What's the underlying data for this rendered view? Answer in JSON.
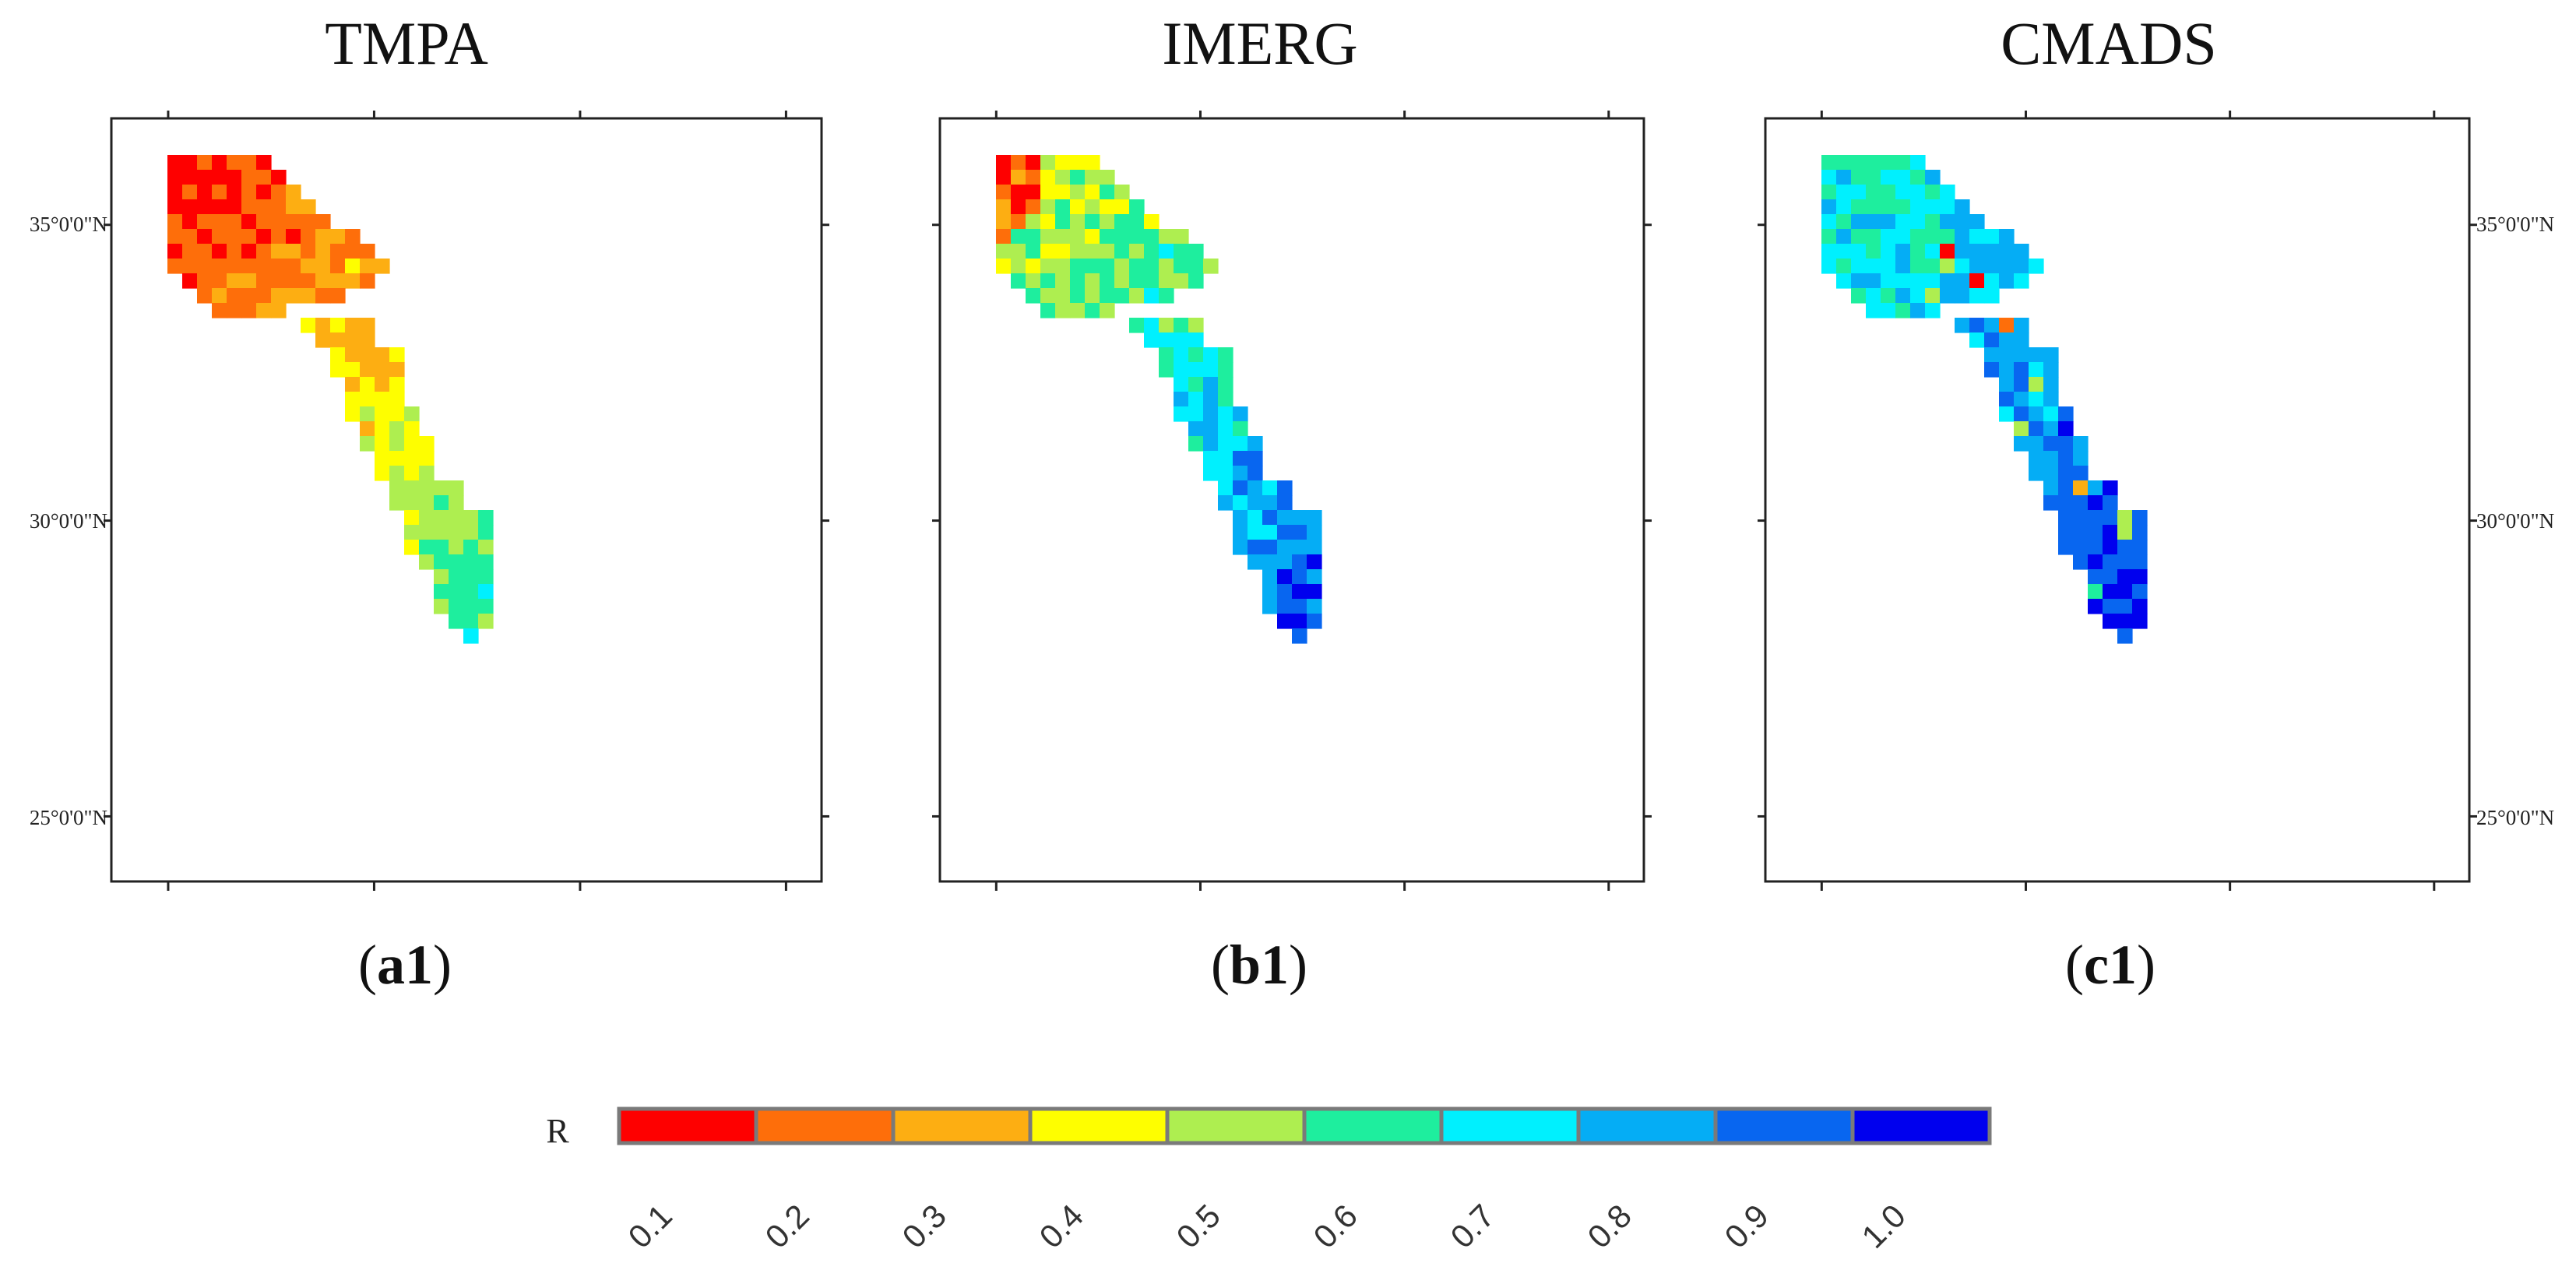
{
  "chart_data": [
    {
      "type": "heatmap",
      "title": "TMPA",
      "panel_label": "a1",
      "y_ticks": [
        "35°0'0\"N",
        "30°0'0\"N",
        "25°0'0\"N"
      ],
      "y_tick_values": [
        35,
        30,
        25
      ],
      "y_range": [
        23.9,
        36.8
      ],
      "ytick_side": "left",
      "value_gradient": "northwest low (0.1–0.3) to southeast moderate (0.5–0.6)",
      "range": [
        0.1,
        0.6
      ]
    },
    {
      "type": "heatmap",
      "title": "IMERG",
      "panel_label": "b1",
      "y_ticks": [],
      "y_tick_values": [
        35,
        30,
        25
      ],
      "y_range": [
        23.9,
        36.8
      ],
      "ytick_side": "none",
      "value_gradient": "northwest moderate (0.3–0.5) to southeast high (0.8–0.9)",
      "range": [
        0.1,
        0.9
      ]
    },
    {
      "type": "heatmap",
      "title": "CMADS",
      "panel_label": "c1",
      "y_ticks": [
        "35°0'0\"N",
        "30°0'0\"N",
        "25°0'0\"N"
      ],
      "y_tick_values": [
        35,
        30,
        25
      ],
      "y_range": [
        23.9,
        36.8
      ],
      "ytick_side": "right",
      "value_gradient": "northwest moderate-high (0.6–0.7) to southeast very high (0.9–1.0)",
      "range": [
        0.1,
        1.0
      ]
    }
  ],
  "legend": {
    "title": "R",
    "bins": [
      {
        "label": "0.1",
        "color": "#fe0000"
      },
      {
        "label": "0.2",
        "color": "#fe6e0a"
      },
      {
        "label": "0.3",
        "color": "#fdae12"
      },
      {
        "label": "0.4",
        "color": "#fefe00"
      },
      {
        "label": "0.5",
        "color": "#aeee50"
      },
      {
        "label": "0.6",
        "color": "#1eee9e"
      },
      {
        "label": "0.7",
        "color": "#00f0fe"
      },
      {
        "label": "0.8",
        "color": "#05adf5"
      },
      {
        "label": "0.9",
        "color": "#0866f0"
      },
      {
        "label": "1.0",
        "color": "#0000ee"
      }
    ]
  }
}
